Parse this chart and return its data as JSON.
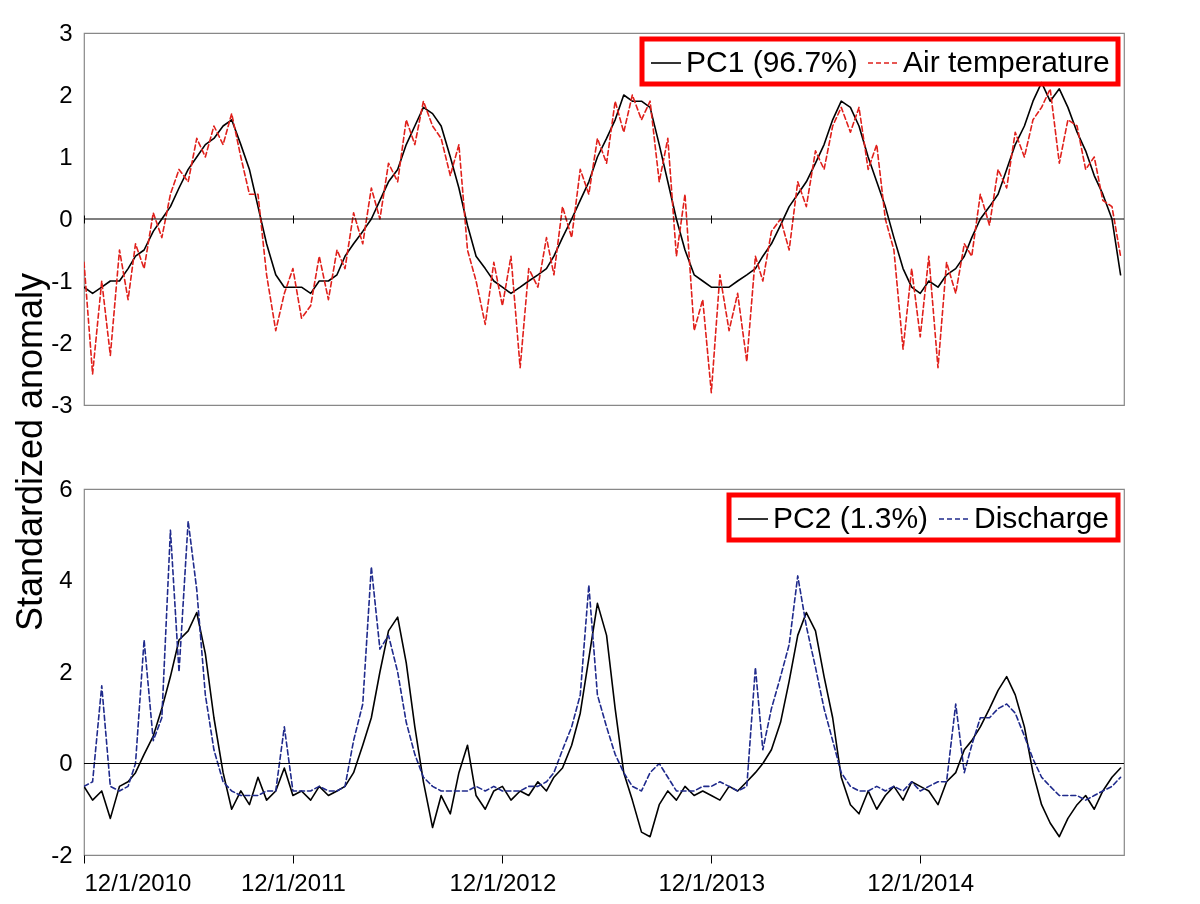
{
  "chart_data": [
    {
      "type": "line",
      "ylabel": "Standardized anomaly",
      "xlim": [
        "2010-12-01",
        "2015-11-22"
      ],
      "ylim": [
        -3,
        3
      ],
      "yticks": [
        -3,
        -2,
        -1,
        0,
        1,
        2,
        3
      ],
      "xticks": [
        {
          "value": "2010-12-01",
          "label": null
        },
        {
          "value": "2011-12-01",
          "label": null
        },
        {
          "value": "2012-12-01",
          "label": null
        },
        {
          "value": "2013-12-01",
          "label": null
        },
        {
          "value": "2014-12-01",
          "label": null
        }
      ],
      "tick_labels": "y",
      "legend": "top right",
      "grid": false,
      "ref_lines": [
        {
          "axis": "y",
          "value": 0,
          "color": "#000000"
        }
      ],
      "x": [
        "2010-12-01",
        "2010-12-16",
        "2011-01-01",
        "2011-01-16",
        "2011-02-01",
        "2011-02-16",
        "2011-03-01",
        "2011-03-16",
        "2011-04-01",
        "2011-04-16",
        "2011-05-01",
        "2011-05-16",
        "2011-06-01",
        "2011-06-16",
        "2011-07-01",
        "2011-07-16",
        "2011-08-01",
        "2011-08-16",
        "2011-09-01",
        "2011-09-16",
        "2011-10-01",
        "2011-10-16",
        "2011-11-01",
        "2011-11-16",
        "2011-12-01",
        "2011-12-16",
        "2012-01-01",
        "2012-01-16",
        "2012-02-01",
        "2012-02-16",
        "2012-03-01",
        "2012-03-16",
        "2012-04-01",
        "2012-04-16",
        "2012-05-01",
        "2012-05-16",
        "2012-06-01",
        "2012-06-16",
        "2012-07-01",
        "2012-07-16",
        "2012-08-01",
        "2012-08-16",
        "2012-09-01",
        "2012-09-16",
        "2012-10-01",
        "2012-10-16",
        "2012-11-01",
        "2012-11-16",
        "2012-12-01",
        "2012-12-16",
        "2013-01-01",
        "2013-01-16",
        "2013-02-01",
        "2013-02-16",
        "2013-03-01",
        "2013-03-16",
        "2013-04-01",
        "2013-04-16",
        "2013-05-01",
        "2013-05-16",
        "2013-06-01",
        "2013-06-16",
        "2013-07-01",
        "2013-07-16",
        "2013-08-01",
        "2013-08-16",
        "2013-09-01",
        "2013-09-16",
        "2013-10-01",
        "2013-10-16",
        "2013-11-01",
        "2013-11-16",
        "2013-12-01",
        "2013-12-16",
        "2014-01-01",
        "2014-01-16",
        "2014-02-01",
        "2014-02-16",
        "2014-03-01",
        "2014-03-16",
        "2014-04-01",
        "2014-04-16",
        "2014-05-01",
        "2014-05-16",
        "2014-06-01",
        "2014-06-16",
        "2014-07-01",
        "2014-07-16",
        "2014-08-01",
        "2014-08-16",
        "2014-09-01",
        "2014-09-16",
        "2014-10-01",
        "2014-10-16",
        "2014-11-01",
        "2014-11-16",
        "2014-12-01",
        "2014-12-16",
        "2015-01-01",
        "2015-01-16",
        "2015-02-01",
        "2015-02-16",
        "2015-03-01",
        "2015-03-16",
        "2015-04-01",
        "2015-04-16",
        "2015-05-01",
        "2015-05-16",
        "2015-06-01",
        "2015-06-16",
        "2015-07-01",
        "2015-07-16",
        "2015-08-01",
        "2015-08-16",
        "2015-09-01",
        "2015-09-16",
        "2015-10-01",
        "2015-10-16",
        "2015-11-01",
        "2015-11-16"
      ],
      "series": [
        {
          "name": "PC1 (96.7%)",
          "color": "#000000",
          "line_style": "solid",
          "values": [
            -1.1,
            -1.2,
            -1.1,
            -1.0,
            -1.0,
            -0.8,
            -0.6,
            -0.5,
            -0.2,
            0.0,
            0.2,
            0.5,
            0.8,
            1.0,
            1.2,
            1.3,
            1.5,
            1.6,
            1.2,
            0.8,
            0.2,
            -0.4,
            -0.9,
            -1.1,
            -1.1,
            -1.1,
            -1.2,
            -1.0,
            -1.0,
            -0.9,
            -0.6,
            -0.4,
            -0.2,
            0.0,
            0.3,
            0.6,
            0.8,
            1.2,
            1.5,
            1.8,
            1.7,
            1.5,
            1.0,
            0.5,
            -0.1,
            -0.6,
            -0.8,
            -1.0,
            -1.1,
            -1.2,
            -1.1,
            -1.0,
            -0.9,
            -0.8,
            -0.6,
            -0.3,
            0.0,
            0.3,
            0.6,
            1.0,
            1.3,
            1.6,
            2.0,
            1.9,
            1.9,
            1.8,
            1.2,
            0.6,
            0.0,
            -0.5,
            -0.9,
            -1.0,
            -1.1,
            -1.1,
            -1.1,
            -1.0,
            -0.9,
            -0.8,
            -0.6,
            -0.4,
            -0.1,
            0.2,
            0.4,
            0.6,
            0.9,
            1.2,
            1.6,
            1.9,
            1.8,
            1.5,
            1.0,
            0.6,
            0.2,
            -0.3,
            -0.8,
            -1.1,
            -1.2,
            -1.0,
            -1.1,
            -0.9,
            -0.8,
            -0.6,
            -0.3,
            0.0,
            0.2,
            0.4,
            0.8,
            1.2,
            1.5,
            1.9,
            2.2,
            1.9,
            2.1,
            1.8,
            1.4,
            1.1,
            0.7,
            0.4,
            0.0,
            -0.9
          ]
        },
        {
          "name": "Air temperature",
          "color": "#e0201b",
          "line_style": "dashed",
          "values": [
            -0.7,
            -2.5,
            -1.0,
            -2.2,
            -0.5,
            -1.3,
            -0.4,
            -0.8,
            0.1,
            -0.3,
            0.4,
            0.8,
            0.6,
            1.3,
            1.0,
            1.5,
            1.2,
            1.7,
            1.0,
            0.4,
            0.4,
            -0.9,
            -1.8,
            -1.2,
            -0.8,
            -1.6,
            -1.4,
            -0.6,
            -1.3,
            -0.5,
            -0.8,
            0.1,
            -0.4,
            0.5,
            0.0,
            0.9,
            0.6,
            1.6,
            1.2,
            1.9,
            1.5,
            1.3,
            0.7,
            1.2,
            -0.5,
            -1.0,
            -1.7,
            -0.7,
            -1.4,
            -0.6,
            -2.4,
            -0.8,
            -1.1,
            -0.3,
            -0.9,
            0.2,
            -0.3,
            0.8,
            0.4,
            1.3,
            0.9,
            1.9,
            1.4,
            2.0,
            1.6,
            1.9,
            0.6,
            1.3,
            -0.6,
            0.4,
            -1.8,
            -1.3,
            -2.8,
            -0.9,
            -1.8,
            -1.2,
            -2.3,
            -0.6,
            -1.0,
            -0.2,
            0.0,
            -0.5,
            0.6,
            0.2,
            1.1,
            0.8,
            1.5,
            1.8,
            1.4,
            1.8,
            0.8,
            1.2,
            0.0,
            -0.5,
            -2.1,
            -0.8,
            -1.9,
            -0.6,
            -2.4,
            -0.7,
            -1.2,
            -0.4,
            -0.6,
            0.4,
            -0.1,
            0.8,
            0.5,
            1.4,
            1.0,
            1.6,
            1.8,
            2.1,
            0.9,
            1.6,
            1.5,
            0.8,
            1.0,
            0.3,
            0.2,
            -0.6
          ]
        }
      ]
    },
    {
      "type": "line",
      "xlim": [
        "2010-12-01",
        "2015-11-22"
      ],
      "ylim": [
        -2,
        6
      ],
      "yticks": [
        -2,
        0,
        2,
        4,
        6
      ],
      "xticks": [
        {
          "value": "2010-12-01",
          "label": "12/1/2010"
        },
        {
          "value": "2011-12-01",
          "label": "12/1/2011"
        },
        {
          "value": "2012-12-01",
          "label": "12/1/2012"
        },
        {
          "value": "2013-12-01",
          "label": "12/1/2013"
        },
        {
          "value": "2014-12-01",
          "label": "12/1/2014"
        }
      ],
      "legend": "top right",
      "grid": false,
      "ref_lines": [
        {
          "axis": "y",
          "value": 0,
          "color": "#000000"
        }
      ],
      "x": [
        "2010-12-01",
        "2010-12-16",
        "2011-01-01",
        "2011-01-16",
        "2011-02-01",
        "2011-02-16",
        "2011-03-01",
        "2011-03-16",
        "2011-04-01",
        "2011-04-16",
        "2011-05-01",
        "2011-05-16",
        "2011-06-01",
        "2011-06-16",
        "2011-07-01",
        "2011-07-16",
        "2011-08-01",
        "2011-08-16",
        "2011-09-01",
        "2011-09-16",
        "2011-10-01",
        "2011-10-16",
        "2011-11-01",
        "2011-11-16",
        "2011-12-01",
        "2011-12-16",
        "2012-01-01",
        "2012-01-16",
        "2012-02-01",
        "2012-02-16",
        "2012-03-01",
        "2012-03-16",
        "2012-04-01",
        "2012-04-16",
        "2012-05-01",
        "2012-05-16",
        "2012-06-01",
        "2012-06-16",
        "2012-07-01",
        "2012-07-16",
        "2012-08-01",
        "2012-08-16",
        "2012-09-01",
        "2012-09-16",
        "2012-10-01",
        "2012-10-16",
        "2012-11-01",
        "2012-11-16",
        "2012-12-01",
        "2012-12-16",
        "2013-01-01",
        "2013-01-16",
        "2013-02-01",
        "2013-02-16",
        "2013-03-01",
        "2013-03-16",
        "2013-04-01",
        "2013-04-16",
        "2013-05-01",
        "2013-05-16",
        "2013-06-01",
        "2013-06-16",
        "2013-07-01",
        "2013-07-16",
        "2013-08-01",
        "2013-08-16",
        "2013-09-01",
        "2013-09-16",
        "2013-10-01",
        "2013-10-16",
        "2013-11-01",
        "2013-11-16",
        "2013-12-01",
        "2013-12-16",
        "2014-01-01",
        "2014-01-16",
        "2014-02-01",
        "2014-02-16",
        "2014-03-01",
        "2014-03-16",
        "2014-04-01",
        "2014-04-16",
        "2014-05-01",
        "2014-05-16",
        "2014-06-01",
        "2014-06-16",
        "2014-07-01",
        "2014-07-16",
        "2014-08-01",
        "2014-08-16",
        "2014-09-01",
        "2014-09-16",
        "2014-10-01",
        "2014-10-16",
        "2014-11-01",
        "2014-11-16",
        "2014-12-01",
        "2014-12-16",
        "2015-01-01",
        "2015-01-16",
        "2015-02-01",
        "2015-02-16",
        "2015-03-01",
        "2015-03-16",
        "2015-04-01",
        "2015-04-16",
        "2015-05-01",
        "2015-05-16",
        "2015-06-01",
        "2015-06-16",
        "2015-07-01",
        "2015-07-16",
        "2015-08-01",
        "2015-08-16",
        "2015-09-01",
        "2015-09-16",
        "2015-10-01",
        "2015-10-16",
        "2015-11-01",
        "2015-11-16"
      ],
      "series": [
        {
          "name": "PC2 (1.3%)",
          "color": "#000000",
          "line_style": "solid",
          "values": [
            -0.5,
            -0.8,
            -0.6,
            -1.2,
            -0.5,
            -0.4,
            -0.2,
            0.2,
            0.6,
            1.2,
            1.9,
            2.7,
            2.9,
            3.3,
            2.4,
            1.0,
            -0.2,
            -1.0,
            -0.6,
            -0.9,
            -0.3,
            -0.8,
            -0.6,
            -0.1,
            -0.7,
            -0.6,
            -0.8,
            -0.5,
            -0.7,
            -0.6,
            -0.5,
            -0.2,
            0.4,
            1.0,
            2.0,
            2.9,
            3.2,
            2.2,
            0.8,
            -0.4,
            -1.4,
            -0.7,
            -1.1,
            -0.2,
            0.4,
            -0.7,
            -1.0,
            -0.6,
            -0.5,
            -0.8,
            -0.6,
            -0.7,
            -0.4,
            -0.6,
            -0.3,
            -0.1,
            0.4,
            1.1,
            2.3,
            3.5,
            2.8,
            1.2,
            -0.2,
            -0.8,
            -1.5,
            -1.6,
            -0.9,
            -0.6,
            -0.8,
            -0.5,
            -0.7,
            -0.6,
            -0.7,
            -0.8,
            -0.5,
            -0.6,
            -0.4,
            -0.2,
            0.0,
            0.3,
            0.9,
            1.8,
            2.8,
            3.3,
            2.9,
            1.9,
            1.0,
            -0.3,
            -0.9,
            -1.1,
            -0.6,
            -1.0,
            -0.7,
            -0.5,
            -0.8,
            -0.4,
            -0.5,
            -0.6,
            -0.9,
            -0.4,
            -0.2,
            0.3,
            0.5,
            0.8,
            1.2,
            1.6,
            1.9,
            1.5,
            0.8,
            -0.2,
            -0.9,
            -1.3,
            -1.6,
            -1.2,
            -0.9,
            -0.7,
            -1.0,
            -0.6,
            -0.3,
            -0.1
          ]
        },
        {
          "name": "Discharge",
          "color": "#1f2a8c",
          "line_style": "dashed",
          "values": [
            -0.5,
            -0.4,
            1.7,
            -0.5,
            -0.6,
            -0.5,
            0.0,
            2.7,
            0.5,
            1.0,
            5.1,
            2.0,
            5.3,
            3.8,
            1.5,
            0.3,
            -0.4,
            -0.6,
            -0.7,
            -0.7,
            -0.7,
            -0.6,
            -0.6,
            0.8,
            -0.6,
            -0.6,
            -0.6,
            -0.5,
            -0.6,
            -0.6,
            -0.5,
            0.5,
            1.3,
            4.3,
            2.5,
            2.8,
            2.0,
            0.9,
            0.2,
            -0.3,
            -0.5,
            -0.6,
            -0.6,
            -0.6,
            -0.6,
            -0.5,
            -0.6,
            -0.5,
            -0.6,
            -0.6,
            -0.6,
            -0.5,
            -0.5,
            -0.4,
            -0.2,
            0.3,
            0.8,
            1.5,
            3.9,
            1.5,
            0.8,
            0.2,
            -0.2,
            -0.5,
            -0.6,
            -0.2,
            0.0,
            -0.3,
            -0.6,
            -0.6,
            -0.6,
            -0.5,
            -0.5,
            -0.4,
            -0.5,
            -0.6,
            -0.5,
            2.1,
            0.3,
            1.2,
            1.9,
            2.6,
            4.1,
            3.0,
            2.1,
            1.2,
            0.5,
            -0.2,
            -0.5,
            -0.6,
            -0.6,
            -0.5,
            -0.6,
            -0.5,
            -0.6,
            -0.4,
            -0.6,
            -0.5,
            -0.4,
            -0.4,
            1.3,
            -0.2,
            0.4,
            1.0,
            1.0,
            1.2,
            1.3,
            1.1,
            0.6,
            0.1,
            -0.3,
            -0.5,
            -0.7,
            -0.7,
            -0.7,
            -0.8,
            -0.7,
            -0.6,
            -0.5,
            -0.3
          ]
        }
      ]
    }
  ]
}
